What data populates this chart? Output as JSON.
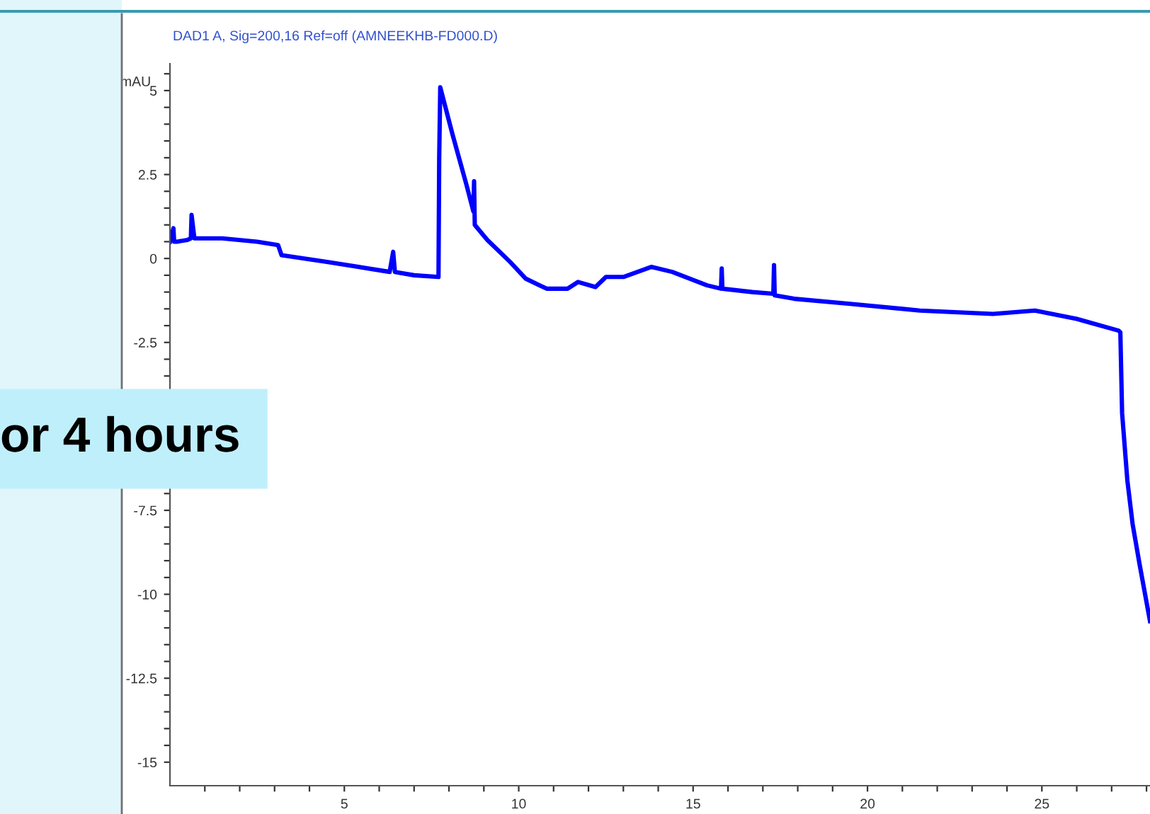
{
  "chart_data": {
    "type": "line",
    "title": "DAD1 A, Sig=200,16 Ref=off (AMNEEKHB-FD000.D)",
    "ylabel": "mAU",
    "annotations": [
      "or 4 hours"
    ],
    "series": [
      {
        "color": "#0000ff",
        "x": [
          0,
          0.1,
          0.12,
          0.2,
          0.5,
          0.6,
          0.62,
          0.7,
          1.5,
          2.5,
          3.1,
          3.2,
          4.5,
          6.3,
          6.4,
          6.45,
          7.0,
          7.7,
          7.72,
          7.75,
          8.1,
          8.5,
          8.7,
          8.72,
          8.74,
          9.1,
          9.75,
          10.2,
          10.8,
          11.4,
          11.7,
          12.2,
          12.5,
          13.0,
          13.8,
          14.4,
          15.4,
          15.8,
          15.82,
          15.84,
          16.7,
          17.3,
          17.32,
          17.34,
          17.9,
          19.5,
          21.5,
          23.6,
          24.8,
          26.0,
          27.2,
          27.25,
          27.3,
          27.45,
          27.6,
          27.8,
          28.1
        ],
        "values": [
          0.5,
          0.9,
          0.5,
          0.5,
          0.55,
          0.6,
          1.3,
          0.6,
          0.6,
          0.5,
          0.4,
          0.1,
          -0.1,
          -0.4,
          0.2,
          -0.4,
          -0.5,
          -0.55,
          3.0,
          5.1,
          3.7,
          2.2,
          1.4,
          2.3,
          1.0,
          0.55,
          -0.1,
          -0.6,
          -0.9,
          -0.9,
          -0.7,
          -0.85,
          -0.55,
          -0.55,
          -0.25,
          -0.4,
          -0.8,
          -0.9,
          -0.3,
          -0.9,
          -1.0,
          -1.05,
          -0.2,
          -1.1,
          -1.2,
          -1.35,
          -1.55,
          -1.65,
          -1.55,
          -1.8,
          -2.15,
          -2.2,
          -4.6,
          -6.6,
          -7.9,
          -9.1,
          -10.8
        ]
      }
    ],
    "xlim": [
      0,
      28.1
    ],
    "ylim": [
      -15.7,
      5.8
    ],
    "xticks": [
      {
        "value": 1,
        "label": null
      },
      {
        "value": 2,
        "label": null
      },
      {
        "value": 3,
        "label": null
      },
      {
        "value": 4,
        "label": null
      },
      5,
      {
        "value": 6,
        "label": null
      },
      {
        "value": 7,
        "label": null
      },
      {
        "value": 8,
        "label": null
      },
      {
        "value": 9,
        "label": null
      },
      10,
      {
        "value": 11,
        "label": null
      },
      {
        "value": 12,
        "label": null
      },
      {
        "value": 13,
        "label": null
      },
      {
        "value": 14,
        "label": null
      },
      15,
      {
        "value": 16,
        "label": null
      },
      {
        "value": 17,
        "label": null
      },
      {
        "value": 18,
        "label": null
      },
      {
        "value": 19,
        "label": null
      },
      20,
      {
        "value": 21,
        "label": null
      },
      {
        "value": 22,
        "label": null
      },
      {
        "value": 23,
        "label": null
      },
      {
        "value": 24,
        "label": null
      },
      25,
      {
        "value": 26,
        "label": null
      },
      {
        "value": 27,
        "label": null
      },
      {
        "value": 28,
        "label": null
      }
    ],
    "yticks": [
      -15,
      {
        "value": -14.5,
        "label": null
      },
      {
        "value": -14,
        "label": null
      },
      {
        "value": -13.5,
        "label": null
      },
      {
        "value": -13,
        "label": null
      },
      -12.5,
      {
        "value": -12,
        "label": null
      },
      {
        "value": -11.5,
        "label": null
      },
      {
        "value": -11,
        "label": null
      },
      {
        "value": -10.5,
        "label": null
      },
      -10,
      {
        "value": -9.5,
        "label": null
      },
      {
        "value": -9,
        "label": null
      },
      {
        "value": -8.5,
        "label": null
      },
      {
        "value": -8,
        "label": null
      },
      -7.5,
      {
        "value": -7,
        "label": null
      },
      {
        "value": -6.5,
        "label": null
      },
      {
        "value": -6,
        "label": null
      },
      {
        "value": -5.5,
        "label": null
      },
      {
        "value": -5,
        "label": null
      },
      {
        "value": -4.5,
        "label": null
      },
      {
        "value": -4,
        "label": null
      },
      {
        "value": -3.5,
        "label": null
      },
      {
        "value": -3,
        "label": null
      },
      -2.5,
      {
        "value": -2,
        "label": null
      },
      {
        "value": -1.5,
        "label": null
      },
      {
        "value": -1,
        "label": null
      },
      {
        "value": -0.5,
        "label": null
      },
      0,
      {
        "value": 0.5,
        "label": null
      },
      {
        "value": 1,
        "label": null
      },
      {
        "value": 1.5,
        "label": null
      },
      {
        "value": 2,
        "label": null
      },
      2.5,
      {
        "value": 3,
        "label": null
      },
      {
        "value": 3.5,
        "label": null
      },
      {
        "value": 4,
        "label": null
      },
      {
        "value": 4.5,
        "label": null
      },
      5,
      {
        "value": 5.5,
        "label": null
      }
    ],
    "grid": false,
    "legend": false,
    "marker": "none",
    "line_style": "solid"
  }
}
